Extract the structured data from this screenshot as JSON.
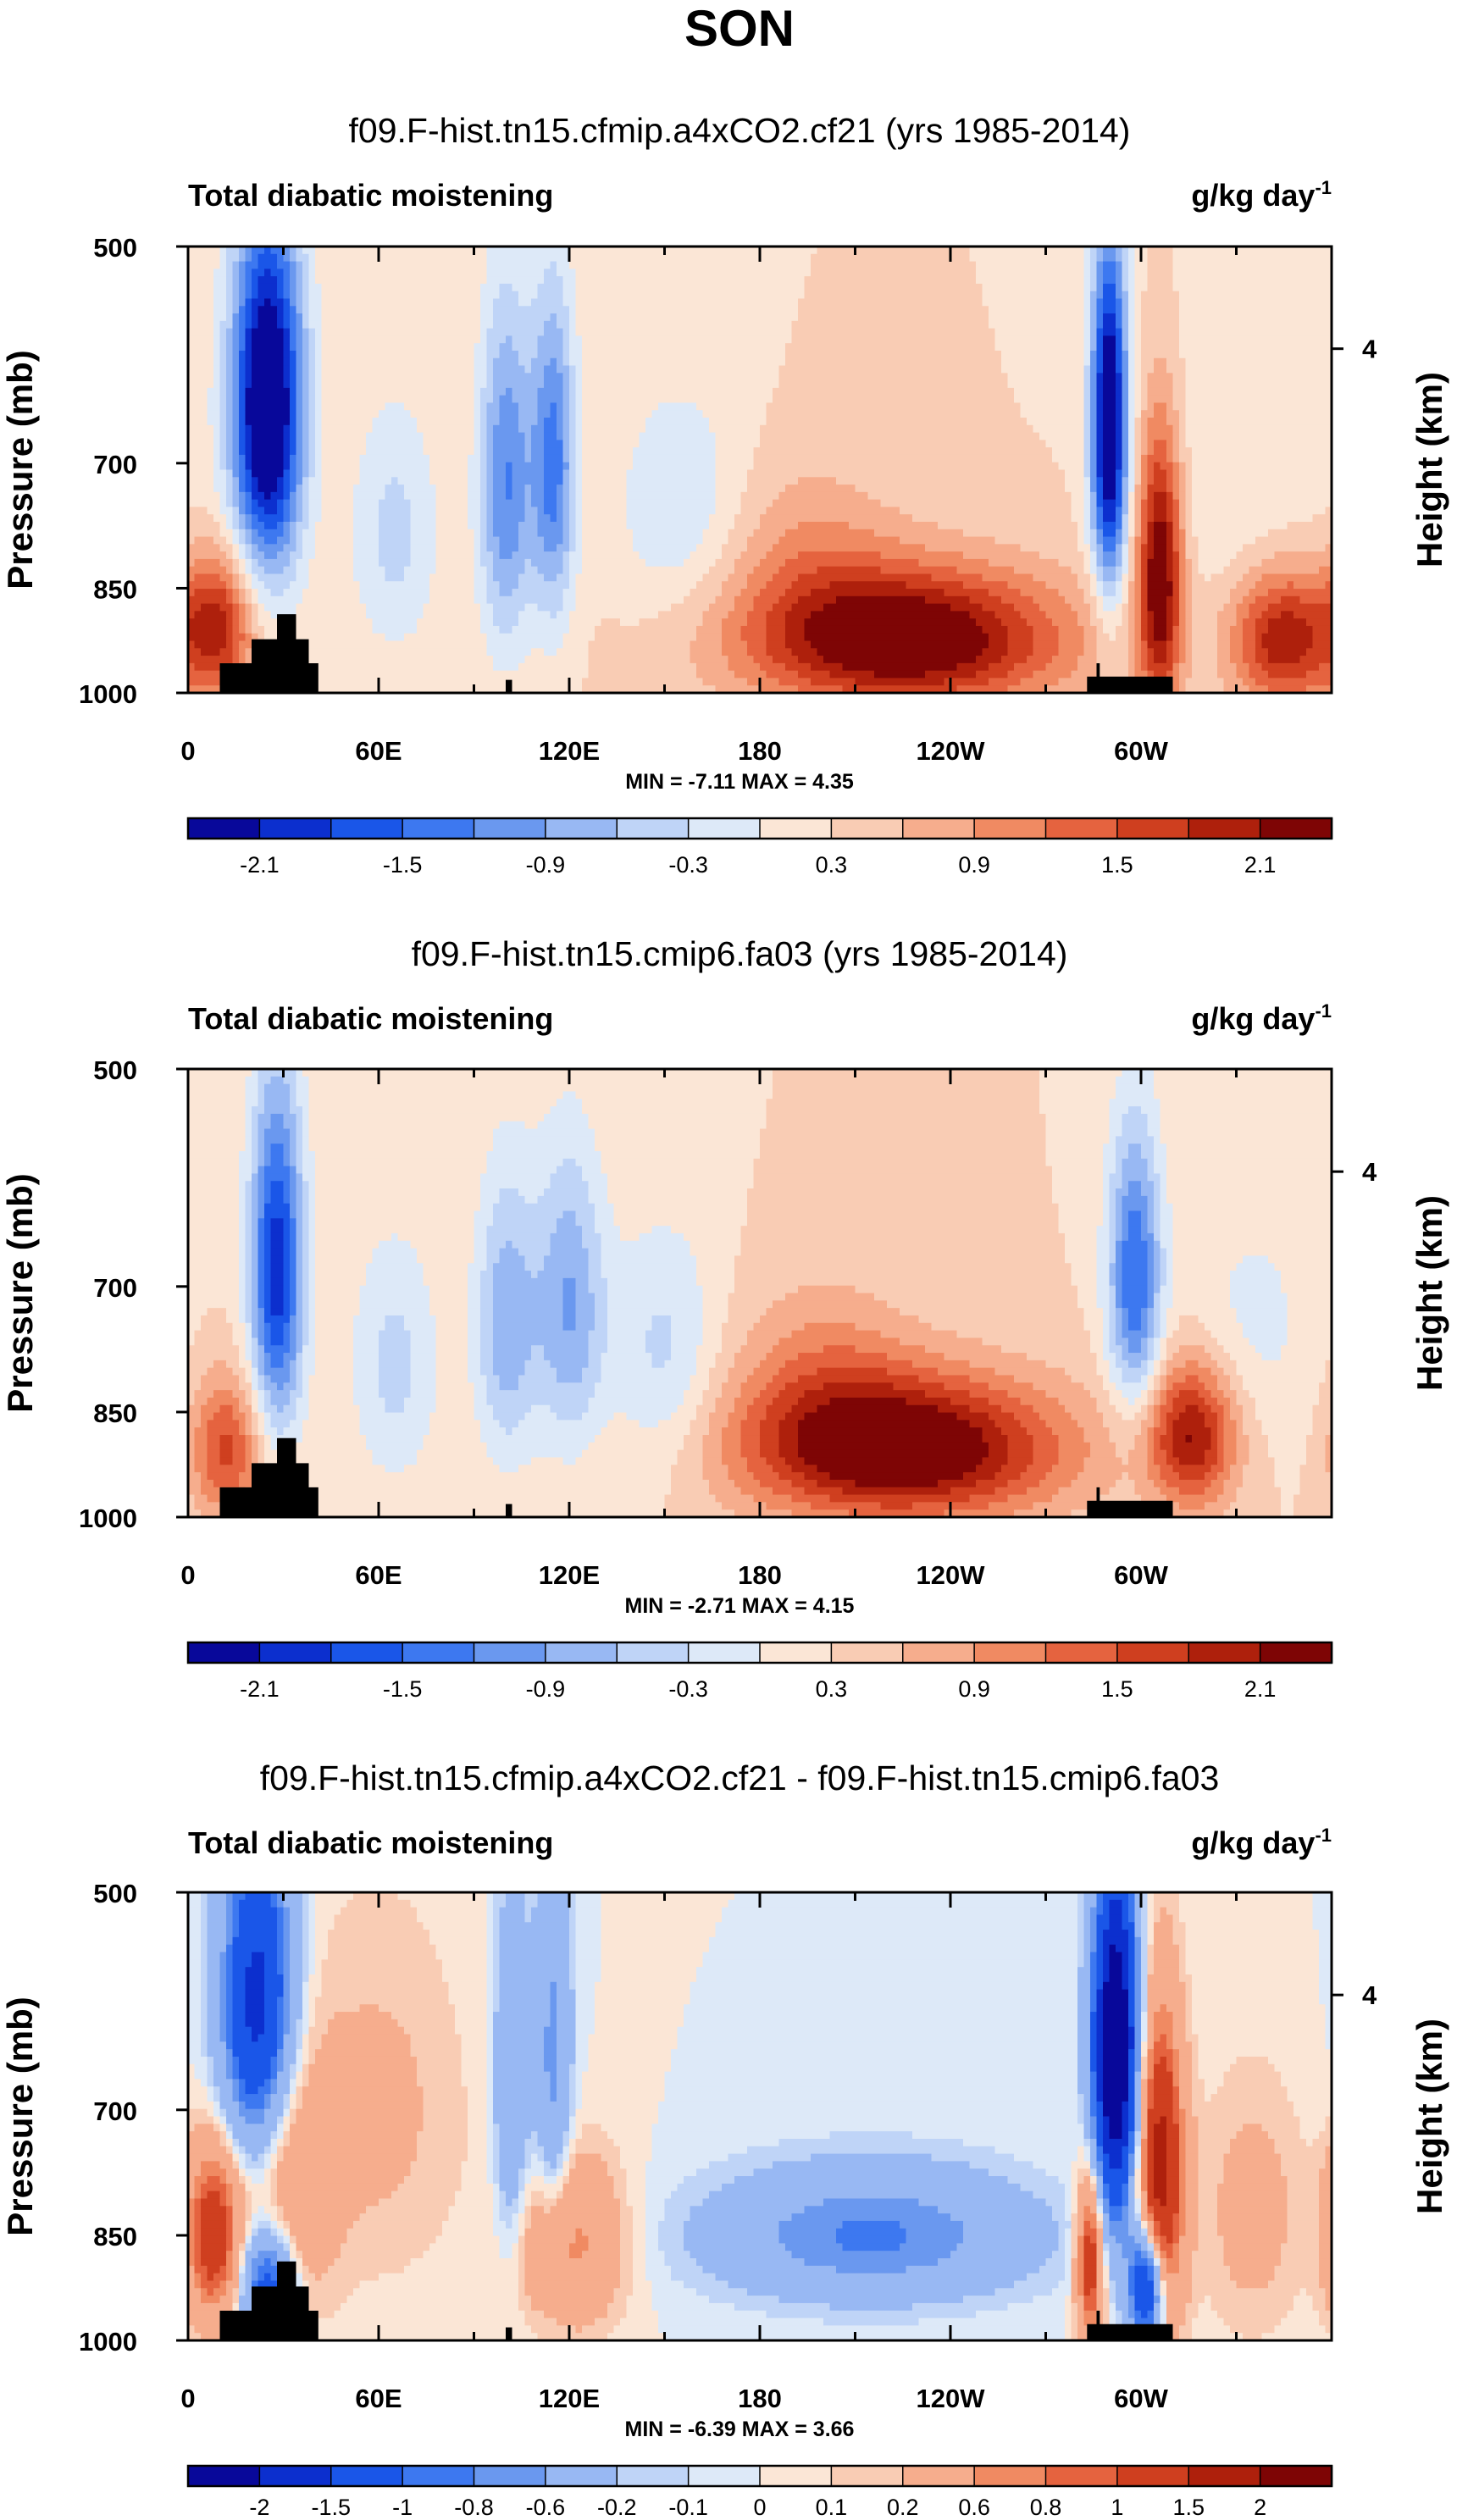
{
  "figure_title": "SON",
  "chart_data": [
    {
      "type": "heatmap",
      "title": "f09.F-hist.tn15.cfmip.a4xCO2.cf21 (yrs 1985-2014)",
      "left_label": "Total diabatic moistening",
      "units_base": "g/kg day",
      "units_exp": "-1",
      "ylabel": "Pressure (mb)",
      "ylabel_right": "Height (km)",
      "y_ticks": [
        500,
        700,
        850,
        1000
      ],
      "y_right_ticks": [
        "4"
      ],
      "ylim": [
        1000,
        500
      ],
      "xlim": [
        0,
        360
      ],
      "x_tick_values": [
        0,
        60,
        120,
        180,
        240,
        300
      ],
      "x_ticks": [
        "0",
        "60E",
        "120E",
        "180",
        "120W",
        "60W"
      ],
      "stats_text": "MIN = -7.11  MAX =  4.35",
      "colorbar_labels": [
        "-2.1",
        "-1.5",
        "-0.9",
        "-0.3",
        "0.3",
        "0.9",
        "1.5",
        "2.1"
      ],
      "colorbar_colors": [
        "#08089a",
        "#0c2fce",
        "#1a56e8",
        "#3d78f0",
        "#6a98ef",
        "#98b8f3",
        "#bfd4f7",
        "#dde9f8",
        "#fbe6d6",
        "#f9ccb4",
        "#f6ad8d",
        "#f08a62",
        "#e5633f",
        "#cf3f1f",
        "#ae200c",
        "#7e0505"
      ],
      "features": [
        {
          "lon": 25,
          "p": 640,
          "amp": -3.2,
          "wl": 8,
          "wp": 130
        },
        {
          "lon": 10,
          "p": 900,
          "amp": 1.6,
          "wl": 8,
          "wp": 70
        },
        {
          "lon": 100,
          "p": 720,
          "amp": -1.5,
          "wl": 6,
          "wp": 140
        },
        {
          "lon": 115,
          "p": 700,
          "amp": -1.6,
          "wl": 5,
          "wp": 130
        },
        {
          "lon": 65,
          "p": 780,
          "amp": -0.7,
          "wl": 10,
          "wp": 110
        },
        {
          "lon": 155,
          "p": 750,
          "amp": -0.6,
          "wl": 15,
          "wp": 100
        },
        {
          "lon": 225,
          "p": 920,
          "amp": 2.4,
          "wl": 35,
          "wp": 70
        },
        {
          "lon": 195,
          "p": 800,
          "amp": 0.5,
          "wl": 20,
          "wp": 80
        },
        {
          "lon": 290,
          "p": 660,
          "amp": -3.0,
          "wl": 4,
          "wp": 130
        },
        {
          "lon": 306,
          "p": 830,
          "amp": 2.2,
          "wl": 5,
          "wp": 130
        },
        {
          "lon": 345,
          "p": 920,
          "amp": 1.8,
          "wl": 12,
          "wp": 70
        },
        {
          "lon": 330,
          "p": 700,
          "amp": -0.3,
          "wl": 20,
          "wp": 150
        }
      ]
    },
    {
      "type": "heatmap",
      "title": "f09.F-hist.tn15.cmip6.fa03 (yrs 1985-2014)",
      "left_label": "Total diabatic moistening",
      "units_base": "g/kg day",
      "units_exp": "-1",
      "ylabel": "Pressure (mb)",
      "ylabel_right": "Height (km)",
      "y_ticks": [
        500,
        700,
        850,
        1000
      ],
      "y_right_ticks": [
        "4"
      ],
      "ylim": [
        1000,
        500
      ],
      "xlim": [
        0,
        360
      ],
      "x_tick_values": [
        0,
        60,
        120,
        180,
        240,
        300
      ],
      "x_ticks": [
        "0",
        "60E",
        "120E",
        "180",
        "120W",
        "60W"
      ],
      "stats_text": "MIN = -2.71  MAX =  4.15",
      "colorbar_labels": [
        "-2.1",
        "-1.5",
        "-0.9",
        "-0.3",
        "0.3",
        "0.9",
        "1.5",
        "2.1"
      ],
      "colorbar_colors": [
        "#08089a",
        "#0c2fce",
        "#1a56e8",
        "#3d78f0",
        "#6a98ef",
        "#98b8f3",
        "#bfd4f7",
        "#dde9f8",
        "#fbe6d6",
        "#f9ccb4",
        "#f6ad8d",
        "#f08a62",
        "#e5633f",
        "#cf3f1f",
        "#ae200c",
        "#7e0505"
      ],
      "features": [
        {
          "lon": 28,
          "p": 680,
          "amp": -2.3,
          "wl": 6,
          "wp": 130
        },
        {
          "lon": 12,
          "p": 900,
          "amp": 1.3,
          "wl": 8,
          "wp": 70
        },
        {
          "lon": 100,
          "p": 740,
          "amp": -1.1,
          "wl": 7,
          "wp": 120
        },
        {
          "lon": 120,
          "p": 720,
          "amp": -1.2,
          "wl": 8,
          "wp": 120
        },
        {
          "lon": 65,
          "p": 790,
          "amp": -0.7,
          "wl": 10,
          "wp": 110
        },
        {
          "lon": 150,
          "p": 780,
          "amp": -0.7,
          "wl": 12,
          "wp": 110
        },
        {
          "lon": 225,
          "p": 900,
          "amp": 2.4,
          "wl": 35,
          "wp": 70
        },
        {
          "lon": 200,
          "p": 800,
          "amp": 0.6,
          "wl": 20,
          "wp": 80
        },
        {
          "lon": 298,
          "p": 690,
          "amp": -1.8,
          "wl": 6,
          "wp": 110
        },
        {
          "lon": 316,
          "p": 880,
          "amp": 1.8,
          "wl": 10,
          "wp": 70
        },
        {
          "lon": 335,
          "p": 740,
          "amp": -0.4,
          "wl": 15,
          "wp": 100
        }
      ]
    },
    {
      "type": "heatmap",
      "title": "f09.F-hist.tn15.cfmip.a4xCO2.cf21 - f09.F-hist.tn15.cmip6.fa03",
      "left_label": "Total diabatic moistening",
      "units_base": "g/kg day",
      "units_exp": "-1",
      "ylabel": "Pressure (mb)",
      "ylabel_right": "Height (km)",
      "y_ticks": [
        500,
        700,
        850,
        1000
      ],
      "y_right_ticks": [
        "4"
      ],
      "ylim": [
        1000,
        500
      ],
      "xlim": [
        0,
        360
      ],
      "x_tick_values": [
        0,
        60,
        120,
        180,
        240,
        300
      ],
      "x_ticks": [
        "0",
        "60E",
        "120E",
        "180",
        "120W",
        "60W"
      ],
      "stats_text": "MIN = -6.39  MAX =  3.66",
      "colorbar_labels": [
        "-2",
        "-1.5",
        "-1",
        "-0.8",
        "-0.6",
        "-0.2",
        "-0.1",
        "0",
        "0.1",
        "0.2",
        "0.6",
        "0.8",
        "1",
        "1.5",
        "2"
      ],
      "colorbar_colors": [
        "#08089a",
        "#0c2fce",
        "#1a56e8",
        "#3d78f0",
        "#6a98ef",
        "#98b8f3",
        "#bfd4f7",
        "#dde9f8",
        "#fbe6d6",
        "#f9ccb4",
        "#f6ad8d",
        "#f08a62",
        "#e5633f",
        "#cf3f1f",
        "#ae200c",
        "#7e0505"
      ],
      "features": [
        {
          "lon": 22,
          "p": 600,
          "amp": -1.8,
          "wl": 8,
          "wp": 110
        },
        {
          "lon": 8,
          "p": 850,
          "amp": 1.3,
          "wl": 6,
          "wp": 80
        },
        {
          "lon": 30,
          "p": 780,
          "amp": 0.6,
          "wl": 10,
          "wp": 120
        },
        {
          "lon": 25,
          "p": 920,
          "amp": -1.4,
          "wl": 6,
          "wp": 60
        },
        {
          "lon": 102,
          "p": 680,
          "amp": -0.6,
          "wl": 4,
          "wp": 140
        },
        {
          "lon": 115,
          "p": 650,
          "amp": -0.7,
          "wl": 4,
          "wp": 140
        },
        {
          "lon": 120,
          "p": 860,
          "amp": 0.7,
          "wl": 12,
          "wp": 80
        },
        {
          "lon": 60,
          "p": 700,
          "amp": 0.25,
          "wl": 20,
          "wp": 150
        },
        {
          "lon": 215,
          "p": 850,
          "amp": -0.85,
          "wl": 35,
          "wp": 60
        },
        {
          "lon": 292,
          "p": 640,
          "amp": -2.8,
          "wl": 5,
          "wp": 120
        },
        {
          "lon": 284,
          "p": 880,
          "amp": 1.4,
          "wl": 3,
          "wp": 80
        },
        {
          "lon": 306,
          "p": 780,
          "amp": 1.8,
          "wl": 5,
          "wp": 130
        },
        {
          "lon": 302,
          "p": 920,
          "amp": -2.0,
          "wl": 4,
          "wp": 60
        },
        {
          "lon": 335,
          "p": 820,
          "amp": 0.3,
          "wl": 12,
          "wp": 120
        }
      ]
    }
  ]
}
